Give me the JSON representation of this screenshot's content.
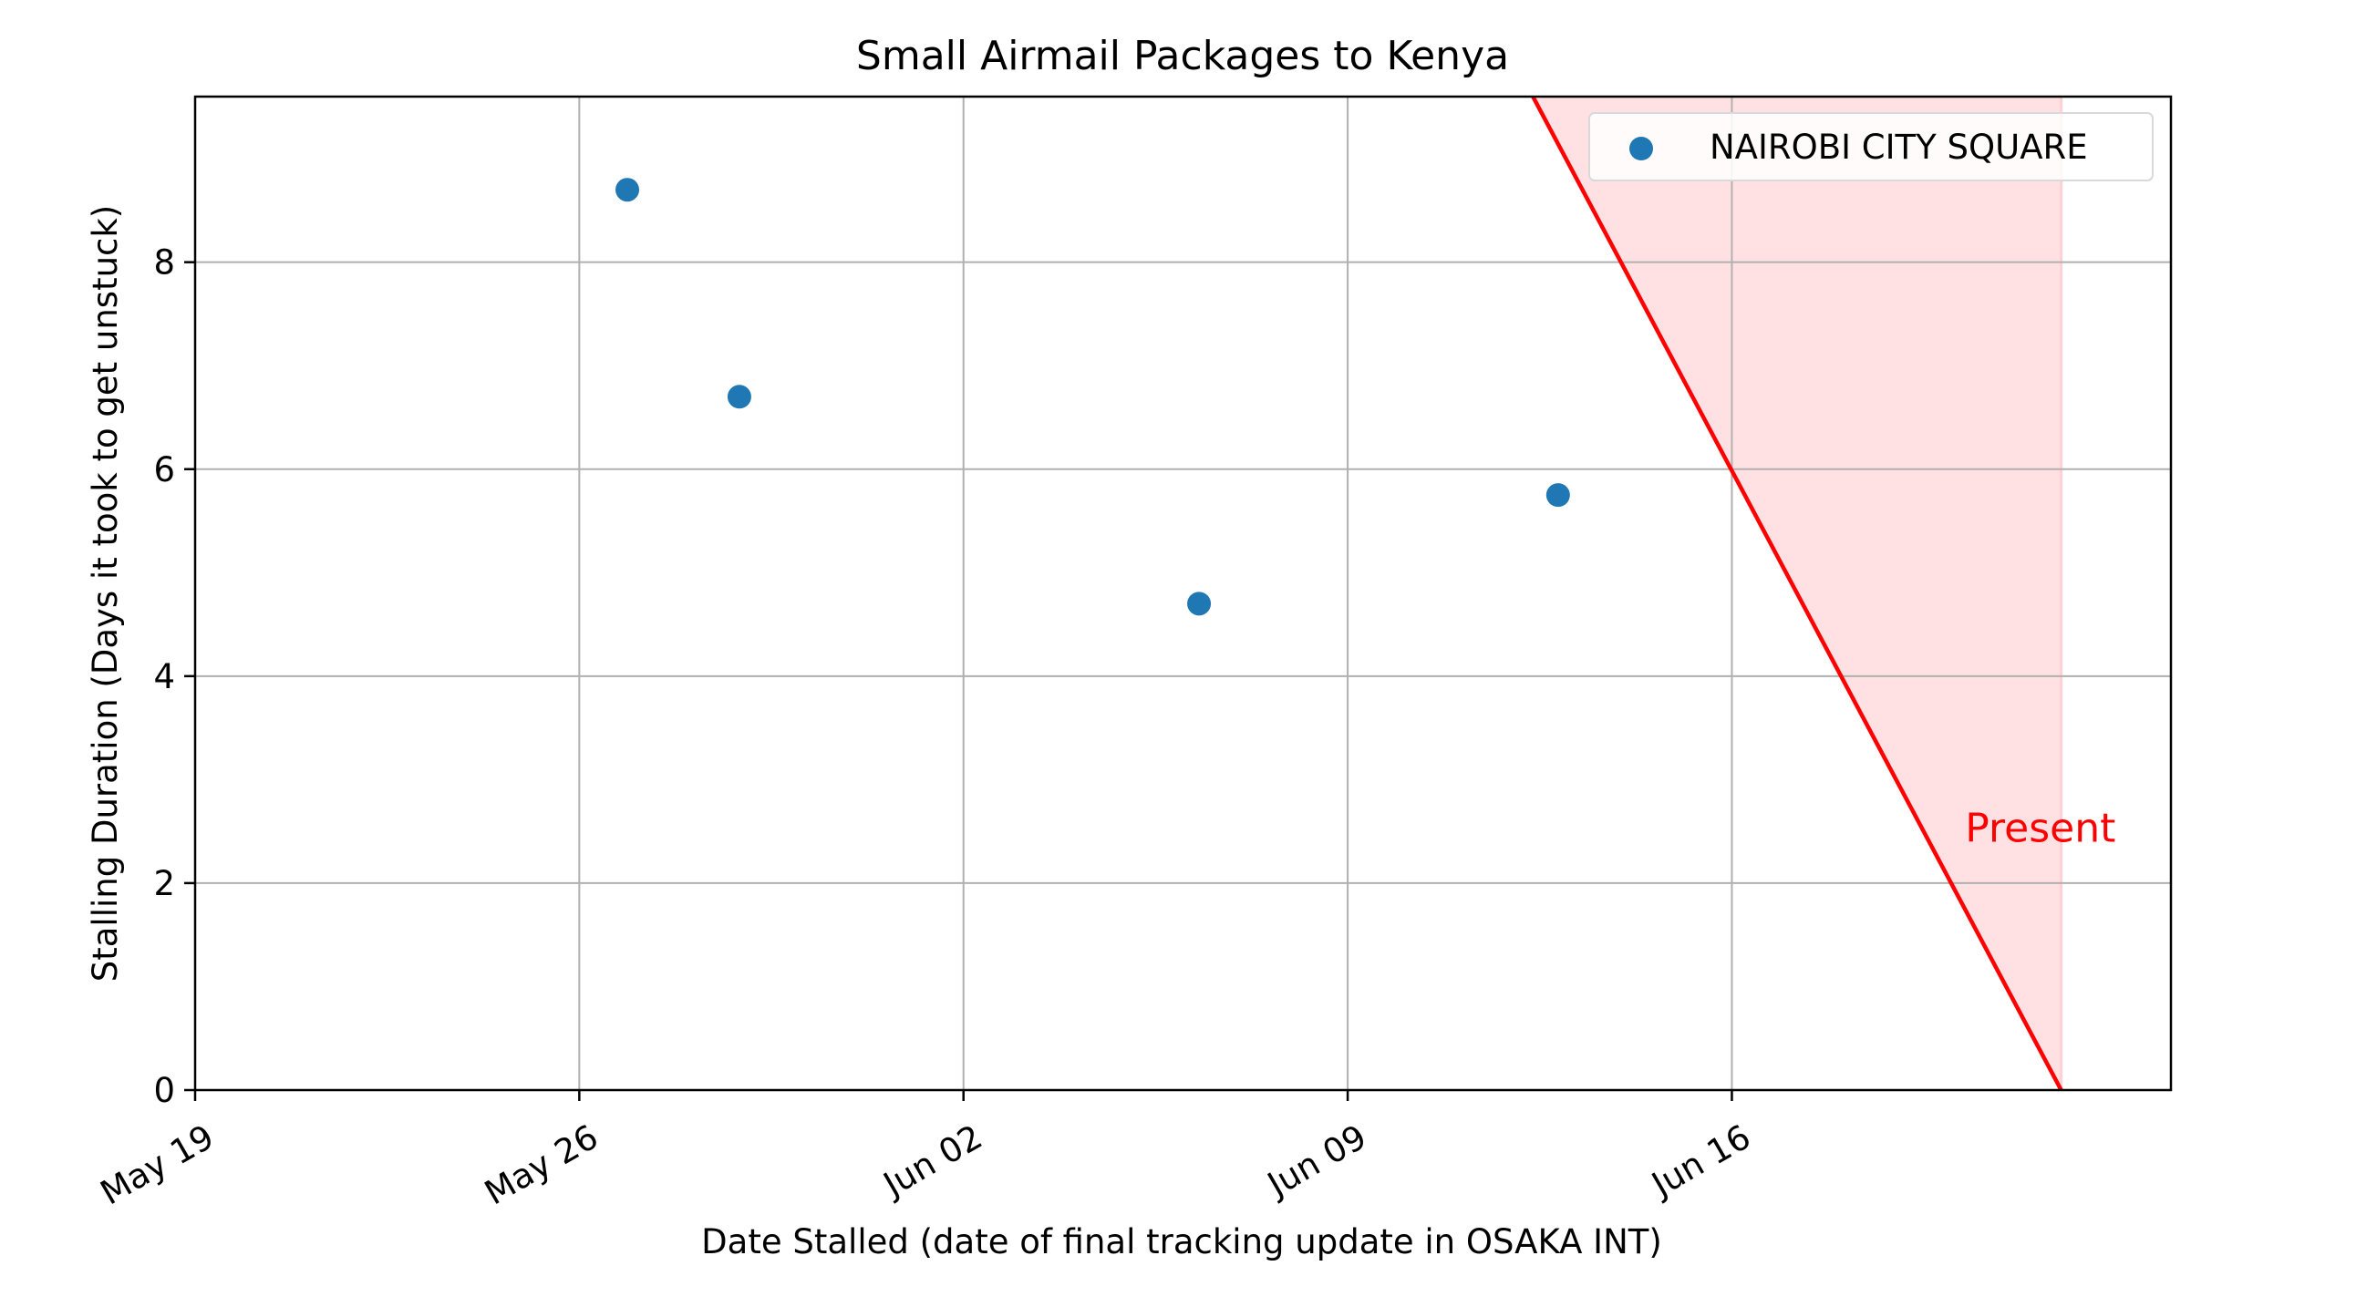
{
  "chart_data": {
    "type": "scatter",
    "title": "Small Airmail Packages to Kenya",
    "xlabel": "Date Stalled (date of final tracking update in OSAKA INT)",
    "ylabel": "Stalling Duration (Days it took to get unstuck)",
    "x_axis": {
      "kind": "date",
      "range": [
        "2024-05-19",
        "2024-06-24"
      ],
      "ticks": [
        {
          "date": "2024-05-19",
          "label": "May 19"
        },
        {
          "date": "2024-05-26",
          "label": "May 26"
        },
        {
          "date": "2024-06-02",
          "label": "Jun 02"
        },
        {
          "date": "2024-06-09",
          "label": "Jun 09"
        },
        {
          "date": "2024-06-16",
          "label": "Jun 16"
        }
      ]
    },
    "y_axis": {
      "range": [
        0,
        9.6
      ],
      "ticks": [
        0,
        2,
        4,
        6,
        8
      ]
    },
    "grid": true,
    "legend_position": "top-right",
    "series": [
      {
        "name": "NAIROBI CITY SQUARE",
        "color": "#1f77b4",
        "points": [
          {
            "x": "2024-05-26 21:00",
            "y": 8.7
          },
          {
            "x": "2024-05-28 22:00",
            "y": 6.7
          },
          {
            "x": "2024-06-06 07:00",
            "y": 4.7
          },
          {
            "x": "2024-06-12 20:00",
            "y": 5.75
          }
        ]
      }
    ],
    "present_line": {
      "label": "Present",
      "color": "#ff0000",
      "fill_color": "#ffe1e3",
      "from": {
        "x": "2024-06-12 09:00",
        "y": 9.6
      },
      "to": {
        "x": "2024-06-22 00:00",
        "y": 0
      },
      "label_at": {
        "x": "2024-06-20 06:00",
        "y": 2.4
      }
    }
  }
}
